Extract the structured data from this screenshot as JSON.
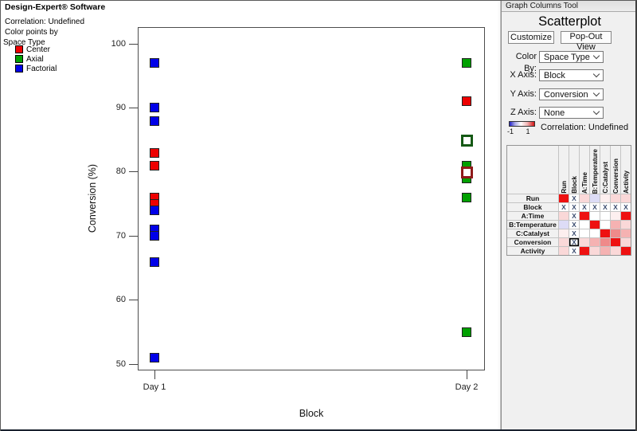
{
  "app": {
    "title": "Design-Expert® Software"
  },
  "legend": {
    "correlation": "Correlation: Undefined",
    "color_points_by": "Color points by",
    "group_title": "Space Type",
    "items": [
      {
        "label": "Center",
        "color": "#ee0000"
      },
      {
        "label": "Axial",
        "color": "#00a000"
      },
      {
        "label": "Factorial",
        "color": "#0000e8"
      }
    ]
  },
  "chart_data": {
    "type": "scatter",
    "title": "",
    "xlabel": "Block",
    "ylabel": "Conversion (%)",
    "x_categories": [
      "Day 1",
      "Day 2"
    ],
    "y_ticks": [
      100,
      90,
      80,
      70,
      60,
      50
    ],
    "y_axis_range": [
      48.5,
      102.5
    ],
    "legend_title": "Space Type",
    "space_colors": {
      "Center": "#ee0000",
      "Axial": "#00a000",
      "Factorial": "#0000e8"
    },
    "open_border_colors": {
      "Center": "#8f1a1a",
      "Axial": "#155915"
    },
    "points": [
      {
        "block": "Day 1",
        "space": "Factorial",
        "conversion": 97
      },
      {
        "block": "Day 1",
        "space": "Factorial",
        "conversion": 90
      },
      {
        "block": "Day 1",
        "space": "Factorial",
        "conversion": 88
      },
      {
        "block": "Day 1",
        "space": "Center",
        "conversion": 83
      },
      {
        "block": "Day 1",
        "space": "Center",
        "conversion": 81
      },
      {
        "block": "Day 1",
        "space": "Center",
        "conversion": 76
      },
      {
        "block": "Day 1",
        "space": "Center",
        "conversion": 75
      },
      {
        "block": "Day 1",
        "space": "Factorial",
        "conversion": 74
      },
      {
        "block": "Day 1",
        "space": "Factorial",
        "conversion": 71
      },
      {
        "block": "Day 1",
        "space": "Factorial",
        "conversion": 70
      },
      {
        "block": "Day 1",
        "space": "Factorial",
        "conversion": 66
      },
      {
        "block": "Day 1",
        "space": "Factorial",
        "conversion": 51
      },
      {
        "block": "Day 2",
        "space": "Axial",
        "conversion": 97
      },
      {
        "block": "Day 2",
        "space": "Center",
        "conversion": 91
      },
      {
        "block": "Day 2",
        "space": "Axial",
        "conversion": 85,
        "open": true
      },
      {
        "block": "Day 2",
        "space": "Axial",
        "conversion": 81
      },
      {
        "block": "Day 2",
        "space": "Axial",
        "conversion": 79
      },
      {
        "block": "Day 2",
        "space": "Center",
        "conversion": 80,
        "open": true
      },
      {
        "block": "Day 2",
        "space": "Axial",
        "conversion": 76
      },
      {
        "block": "Day 2",
        "space": "Axial",
        "conversion": 55
      }
    ]
  },
  "panel": {
    "titlebar": "Graph Columns Tool",
    "title": "Scatterplot",
    "buttons": [
      "Customize",
      "Pop-Out View"
    ],
    "selectors": [
      {
        "label": "Color By:",
        "value": "Space Type"
      },
      {
        "label": "X Axis:",
        "value": "Block"
      },
      {
        "label": "Y Axis:",
        "value": "Conversion"
      },
      {
        "label": "Z Axis:",
        "value": "None"
      }
    ],
    "gradient": {
      "min_label": "-1",
      "max_label": "1",
      "left_color": "#2020c8",
      "right_color": "#d41414"
    },
    "correlation_status": "Correlation: Undefined"
  },
  "matrix": {
    "x_label": "X",
    "columns": [
      "Run",
      "Block",
      "A:Time",
      "B:Temperature",
      "C:Catalyst",
      "Conversion",
      "Activity"
    ],
    "palette": {
      "S": "#ee1111",
      "M1": "#ef8a8a",
      "M2": "#f5b2b2",
      "L": "#fad8d8",
      "P": "#fdefef",
      "N": "#dddcf6",
      "W": "#ffffff"
    },
    "rows": [
      {
        "label": "Run",
        "cells": [
          "S",
          "X",
          "L",
          "N",
          "P",
          "L",
          "L"
        ]
      },
      {
        "label": "Block",
        "cells": [
          "X",
          "X",
          "X",
          "X",
          "X",
          "X",
          "X"
        ]
      },
      {
        "label": "A:Time",
        "cells": [
          "L",
          "X",
          "S",
          "W",
          "W",
          "P",
          "S"
        ]
      },
      {
        "label": "B:Temperature",
        "cells": [
          "N",
          "X",
          "W",
          "S",
          "W",
          "M2",
          "L"
        ]
      },
      {
        "label": "C:Catalyst",
        "cells": [
          "P",
          "X",
          "W",
          "W",
          "S",
          "M1",
          "M2"
        ]
      },
      {
        "label": "Conversion",
        "cells": [
          "L",
          "XB",
          "L",
          "M2",
          "M1",
          "S",
          "L"
        ]
      },
      {
        "label": "Activity",
        "cells": [
          "L",
          "X",
          "S",
          "L",
          "M2",
          "L",
          "S"
        ]
      }
    ]
  }
}
